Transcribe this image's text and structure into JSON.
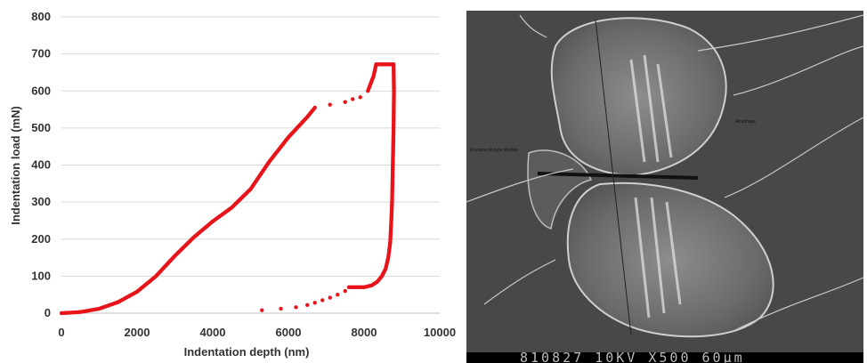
{
  "chart_data": {
    "type": "scatter",
    "xlabel": "Indentation depth (nm)",
    "ylabel": "Indentation load (mN)",
    "xlim": [
      0,
      10000
    ],
    "ylim": [
      0,
      800
    ],
    "x_ticks": [
      "0",
      "2000",
      "4000",
      "6000",
      "8000",
      "10000"
    ],
    "y_ticks": [
      "0",
      "100",
      "200",
      "300",
      "400",
      "500",
      "600",
      "700",
      "800"
    ],
    "grid": "horizontal",
    "marker_color": "#e8141a",
    "series": [
      {
        "segment": "loading",
        "x": [
          0,
          500,
          1000,
          1500,
          2000,
          2500,
          3000,
          3500,
          4000,
          4500,
          5000,
          5500,
          6000,
          6500,
          6700,
          7100,
          7500,
          7700,
          7900,
          8100,
          8250,
          8320
        ],
        "y": [
          0,
          3,
          12,
          30,
          58,
          100,
          155,
          205,
          248,
          285,
          335,
          410,
          475,
          530,
          555,
          563,
          570,
          578,
          583,
          600,
          640,
          672
        ]
      },
      {
        "segment": "hold",
        "x": [
          8320,
          8400,
          8500,
          8600,
          8700,
          8780
        ],
        "y": [
          672,
          672,
          672,
          672,
          672,
          672
        ]
      },
      {
        "segment": "unloading",
        "x": [
          8780,
          8790,
          8780,
          8760,
          8740,
          8720,
          8690,
          8640,
          8570,
          8470,
          8350,
          8200,
          8000,
          7800,
          7650,
          7600,
          7500,
          7300,
          7100,
          6900,
          6700,
          6500,
          6200,
          5800,
          5300
        ],
        "y": [
          672,
          600,
          500,
          400,
          300,
          250,
          190,
          150,
          120,
          100,
          85,
          75,
          70,
          70,
          70,
          70,
          60,
          50,
          42,
          35,
          28,
          22,
          16,
          12,
          8
        ]
      }
    ]
  },
  "sem_image": {
    "label_left": "Fracture de type Median",
    "label_right": "Arrachage",
    "info_bar": "810827  10KV  X500    60µm"
  }
}
